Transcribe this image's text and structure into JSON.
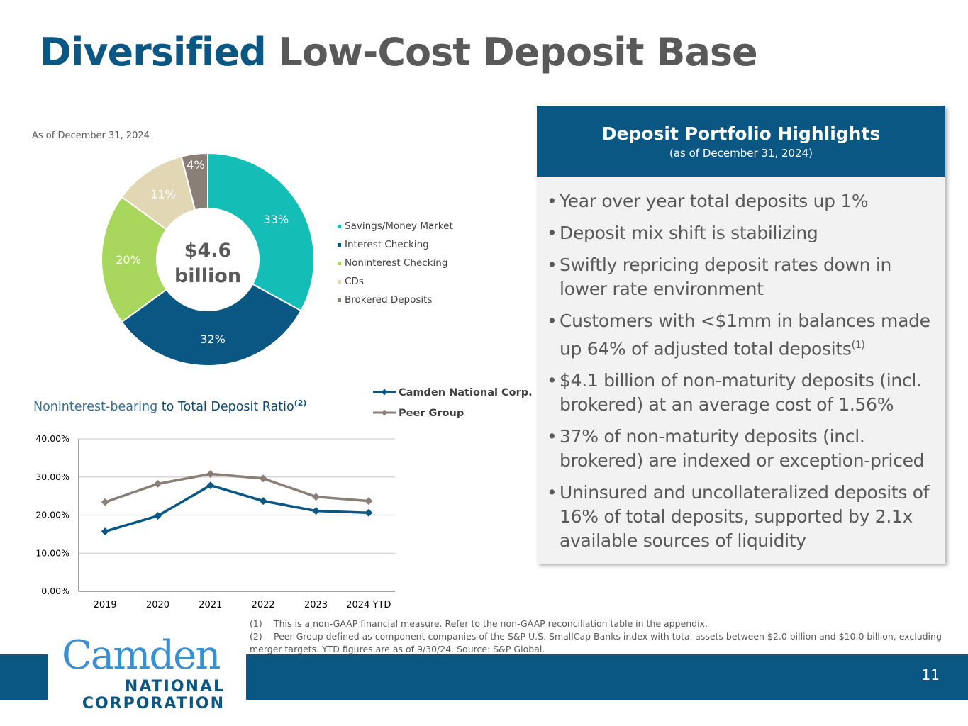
{
  "title": {
    "part1": "Diversified",
    "part2": "Low-Cost Deposit Base"
  },
  "pie": {
    "as_of": "As of December 31, 2024",
    "center_line1": "$4.6",
    "center_line2": "billion"
  },
  "highlights": {
    "title": "Deposit Portfolio Highlights",
    "subtitle": "(as of December 31, 2024)",
    "b1": "Year over year total deposits up 1%",
    "b2": "Deposit mix shift is stabilizing",
    "b3": "Swiftly repricing deposit rates down in lower rate environment",
    "b4": "Customers with <$1mm in balances made up 64% of adjusted total deposits",
    "b4_sup": "(1)",
    "b5": "$4.1 billion of non-maturity deposits (incl. brokered) at an average cost of 1.56%",
    "b6": "37% of non-maturity deposits (incl. brokered) are indexed or exception-priced",
    "b7": "Uninsured and uncollateralized deposits of 16% of total deposits, supported by 2.1x available sources of liquidity"
  },
  "line_title": {
    "part1": "Noninterest-bearing",
    "part2": "to Total Deposit Ratio",
    "sup": "(2)"
  },
  "footnotes": {
    "n1": "(1)",
    "t1": "This is a non-GAAP financial measure. Refer to the non-GAAP reconciliation table in the appendix.",
    "n2": "(2)",
    "t2": "Peer Group defined as component companies of the S&P U.S. SmallCap Banks index with total assets between $2.0 billion and $10.0 billion, excluding merger targets. YTD figures are as of 9/30/24. Source: S&P Global."
  },
  "logo": {
    "line1": "Camden",
    "line2": "NATIONAL",
    "line3": "CORPORATION"
  },
  "page_number": "11",
  "colors": {
    "brand_blue": "#0b5783",
    "savings": "#14bdb5",
    "interest": "#0b5783",
    "noninterest": "#a9d65c",
    "cds": "#e1d7b4",
    "brokered": "#8a7f77",
    "peer": "#8a7f77"
  },
  "chart_data": [
    {
      "type": "pie",
      "title": "",
      "categories": [
        "Savings/Money Market",
        "Interest Checking",
        "Noninterest Checking",
        "CDs",
        "Brokered Deposits"
      ],
      "values": [
        33,
        32,
        20,
        11,
        4
      ],
      "labels": [
        "33%",
        "32%",
        "20%",
        "11%",
        "4%"
      ],
      "colors": [
        "#14bdb5",
        "#0b5783",
        "#a9d65c",
        "#e1d7b4",
        "#8a7f77"
      ],
      "legend": "right"
    },
    {
      "type": "line",
      "title": "Noninterest-bearing to Total Deposit Ratio",
      "categories": [
        "2019",
        "2020",
        "2021",
        "2022",
        "2023",
        "2024 YTD"
      ],
      "series": [
        {
          "name": "Camden National Corp.",
          "values": [
            15.7,
            19.8,
            27.8,
            23.7,
            21.1,
            20.6
          ],
          "color": "#0b5783"
        },
        {
          "name": "Peer Group",
          "values": [
            23.4,
            28.2,
            30.8,
            29.6,
            24.8,
            23.7
          ],
          "color": "#8a7f77"
        }
      ],
      "ylim": [
        0,
        40
      ],
      "yticks": [
        "0.00%",
        "10.00%",
        "20.00%",
        "30.00%",
        "40.00%"
      ],
      "grid": true,
      "legend": "top-right"
    }
  ]
}
